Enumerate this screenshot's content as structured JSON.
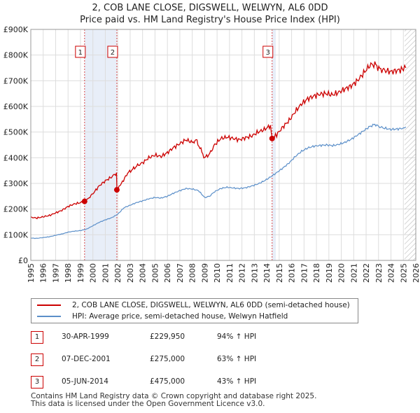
{
  "title_line1": "2, COB LANE CLOSE, DIGSWELL, WELWYN, AL6 0DD",
  "title_line2": "Price paid vs. HM Land Registry's House Price Index (HPI)",
  "chart_data": {
    "type": "line",
    "xlim": [
      1995,
      2026
    ],
    "ylim": [
      0,
      900000
    ],
    "y_ticks": [
      {
        "value": 0,
        "label": "£0"
      },
      {
        "value": 100000,
        "label": "£100K"
      },
      {
        "value": 200000,
        "label": "£200K"
      },
      {
        "value": 300000,
        "label": "£300K"
      },
      {
        "value": 400000,
        "label": "£400K"
      },
      {
        "value": 500000,
        "label": "£500K"
      },
      {
        "value": 600000,
        "label": "£600K"
      },
      {
        "value": 700000,
        "label": "£700K"
      },
      {
        "value": 800000,
        "label": "£800K"
      },
      {
        "value": 900000,
        "label": "£900K"
      }
    ],
    "x_ticks": [
      "1995",
      "1996",
      "1997",
      "1998",
      "1999",
      "2000",
      "2001",
      "2002",
      "2003",
      "2004",
      "2005",
      "2006",
      "2007",
      "2008",
      "2009",
      "2010",
      "2011",
      "2012",
      "2013",
      "2014",
      "2015",
      "2016",
      "2017",
      "2018",
      "2019",
      "2020",
      "2021",
      "2022",
      "2023",
      "2024",
      "2025",
      "2026"
    ],
    "grid": true,
    "shaded_spans": [
      [
        1999.33,
        2001.93
      ],
      [
        2014.43,
        2014.73
      ]
    ],
    "hatch_from": 2025.1,
    "series": [
      {
        "name": "2, COB LANE CLOSE, DIGSWELL, WELWYN, AL6 0DD (semi-detached house)",
        "color": "#cc0000",
        "points": [
          [
            1995.0,
            168000
          ],
          [
            1995.5,
            165000
          ],
          [
            1996.0,
            170000
          ],
          [
            1996.5,
            175000
          ],
          [
            1997.0,
            185000
          ],
          [
            1997.5,
            195000
          ],
          [
            1998.0,
            210000
          ],
          [
            1998.5,
            220000
          ],
          [
            1999.0,
            225000
          ],
          [
            1999.33,
            229950
          ],
          [
            1999.6,
            240000
          ],
          [
            2000.0,
            260000
          ],
          [
            2000.5,
            290000
          ],
          [
            2001.0,
            310000
          ],
          [
            2001.5,
            325000
          ],
          [
            2001.9,
            340000
          ],
          [
            2001.93,
            275000
          ],
          [
            2002.3,
            300000
          ],
          [
            2002.8,
            340000
          ],
          [
            2003.2,
            355000
          ],
          [
            2003.6,
            370000
          ],
          [
            2004.0,
            380000
          ],
          [
            2004.5,
            400000
          ],
          [
            2005.0,
            410000
          ],
          [
            2005.5,
            405000
          ],
          [
            2006.0,
            420000
          ],
          [
            2006.5,
            440000
          ],
          [
            2007.0,
            455000
          ],
          [
            2007.5,
            470000
          ],
          [
            2008.0,
            460000
          ],
          [
            2008.3,
            470000
          ],
          [
            2008.7,
            430000
          ],
          [
            2009.0,
            400000
          ],
          [
            2009.4,
            415000
          ],
          [
            2009.8,
            450000
          ],
          [
            2010.3,
            475000
          ],
          [
            2010.8,
            480000
          ],
          [
            2011.3,
            475000
          ],
          [
            2011.8,
            470000
          ],
          [
            2012.3,
            478000
          ],
          [
            2012.8,
            485000
          ],
          [
            2013.3,
            500000
          ],
          [
            2013.8,
            510000
          ],
          [
            2014.3,
            525000
          ],
          [
            2014.43,
            475000
          ],
          [
            2014.8,
            490000
          ],
          [
            2015.3,
            520000
          ],
          [
            2015.8,
            545000
          ],
          [
            2016.3,
            580000
          ],
          [
            2016.8,
            610000
          ],
          [
            2017.3,
            630000
          ],
          [
            2017.8,
            640000
          ],
          [
            2018.3,
            648000
          ],
          [
            2018.8,
            650000
          ],
          [
            2019.3,
            645000
          ],
          [
            2019.8,
            655000
          ],
          [
            2020.3,
            668000
          ],
          [
            2020.8,
            680000
          ],
          [
            2021.3,
            700000
          ],
          [
            2021.8,
            730000
          ],
          [
            2022.3,
            760000
          ],
          [
            2022.7,
            765000
          ],
          [
            2023.1,
            745000
          ],
          [
            2023.5,
            740000
          ],
          [
            2024.0,
            735000
          ],
          [
            2024.5,
            740000
          ],
          [
            2025.0,
            745000
          ],
          [
            2025.2,
            750000
          ]
        ]
      },
      {
        "name": "HPI: Average price, semi-detached house, Welwyn Hatfield",
        "color": "#5b8fc9",
        "points": [
          [
            1995.0,
            87000
          ],
          [
            1995.5,
            86000
          ],
          [
            1996.0,
            89000
          ],
          [
            1996.5,
            92000
          ],
          [
            1997.0,
            98000
          ],
          [
            1997.5,
            103000
          ],
          [
            1998.0,
            110000
          ],
          [
            1998.5,
            114000
          ],
          [
            1999.0,
            116000
          ],
          [
            1999.5,
            122000
          ],
          [
            2000.0,
            135000
          ],
          [
            2000.5,
            148000
          ],
          [
            2001.0,
            158000
          ],
          [
            2001.5,
            166000
          ],
          [
            2002.0,
            180000
          ],
          [
            2002.5,
            205000
          ],
          [
            2003.0,
            215000
          ],
          [
            2003.5,
            225000
          ],
          [
            2004.0,
            232000
          ],
          [
            2004.5,
            240000
          ],
          [
            2005.0,
            245000
          ],
          [
            2005.5,
            243000
          ],
          [
            2006.0,
            250000
          ],
          [
            2006.5,
            262000
          ],
          [
            2007.0,
            272000
          ],
          [
            2007.5,
            280000
          ],
          [
            2008.0,
            278000
          ],
          [
            2008.5,
            272000
          ],
          [
            2009.0,
            245000
          ],
          [
            2009.4,
            250000
          ],
          [
            2009.8,
            268000
          ],
          [
            2010.3,
            280000
          ],
          [
            2010.8,
            285000
          ],
          [
            2011.3,
            282000
          ],
          [
            2011.8,
            280000
          ],
          [
            2012.3,
            283000
          ],
          [
            2012.8,
            290000
          ],
          [
            2013.3,
            298000
          ],
          [
            2013.8,
            310000
          ],
          [
            2014.3,
            325000
          ],
          [
            2014.8,
            342000
          ],
          [
            2015.3,
            360000
          ],
          [
            2015.8,
            380000
          ],
          [
            2016.3,
            405000
          ],
          [
            2016.8,
            425000
          ],
          [
            2017.3,
            438000
          ],
          [
            2017.8,
            445000
          ],
          [
            2018.3,
            448000
          ],
          [
            2018.8,
            450000
          ],
          [
            2019.3,
            447000
          ],
          [
            2019.8,
            452000
          ],
          [
            2020.3,
            460000
          ],
          [
            2020.8,
            472000
          ],
          [
            2021.3,
            488000
          ],
          [
            2021.8,
            505000
          ],
          [
            2022.3,
            522000
          ],
          [
            2022.7,
            530000
          ],
          [
            2023.1,
            520000
          ],
          [
            2023.5,
            515000
          ],
          [
            2024.0,
            510000
          ],
          [
            2024.5,
            512000
          ],
          [
            2025.0,
            515000
          ],
          [
            2025.2,
            520000
          ]
        ]
      }
    ],
    "sales": [
      {
        "label": "1",
        "year": 1999.33,
        "price": 229950
      },
      {
        "label": "2",
        "year": 2001.93,
        "price": 275000
      },
      {
        "label": "3",
        "year": 2014.43,
        "price": 475000
      }
    ]
  },
  "legend": {
    "property_label": "2, COB LANE CLOSE, DIGSWELL, WELWYN, AL6 0DD (semi-detached house)",
    "hpi_label": "HPI: Average price, semi-detached house, Welwyn Hatfield"
  },
  "transactions": [
    {
      "num": "1",
      "date": "30-APR-1999",
      "price": "£229,950",
      "hpi": "94% ↑ HPI"
    },
    {
      "num": "2",
      "date": "07-DEC-2001",
      "price": "£275,000",
      "hpi": "63% ↑ HPI"
    },
    {
      "num": "3",
      "date": "05-JUN-2014",
      "price": "£475,000",
      "hpi": "43% ↑ HPI"
    }
  ],
  "footer": {
    "line1": "Contains HM Land Registry data © Crown copyright and database right 2025.",
    "line2": "This data is licensed under the Open Government Licence v3.0."
  }
}
